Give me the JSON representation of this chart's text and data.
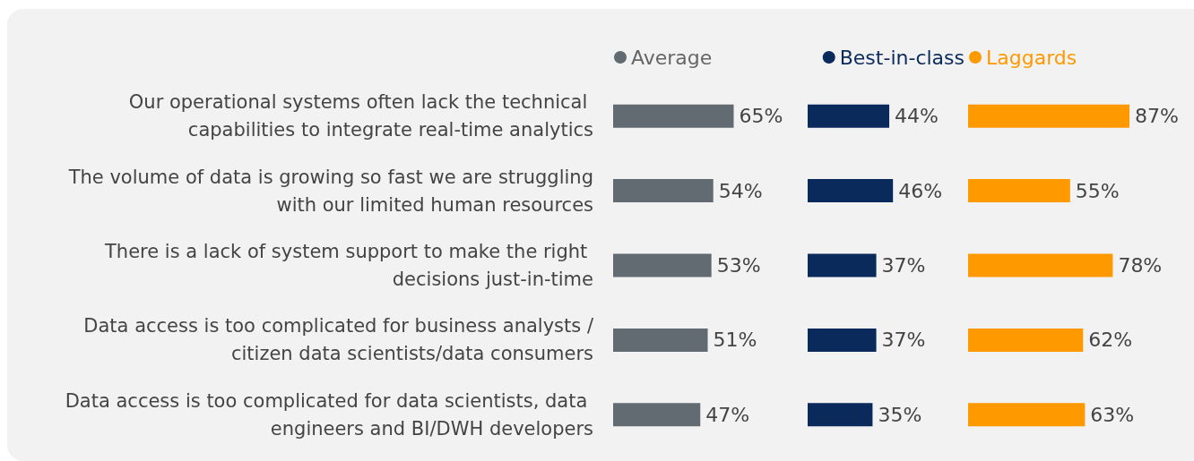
{
  "chart_data": [
    {
      "type": "bar",
      "orientation": "horizontal",
      "categories": [
        "Our operational systems often lack the technical capabilities to integrate real-time analytics",
        "The volume of data is growing so fast we are struggling with our limited human resources",
        "There is a lack of system support to make the right decisions just-in-time",
        "Data access is too complicated for business analysts /citizen data scientists/data consumers",
        "Data access is too complicated for data scientists, data engineers and BI/DWH developers"
      ],
      "tick_labels": "y",
      "legend": "top left",
      "grid": false,
      "series": [
        {
          "name": "Average",
          "color": "#636b72",
          "values": [
            65,
            54,
            53,
            51,
            47
          ],
          "value_labels": [
            "65%",
            "54%",
            "53%",
            "51%",
            "47%"
          ]
        }
      ]
    },
    {
      "type": "bar",
      "orientation": "horizontal",
      "categories": [
        null,
        null,
        null,
        null,
        null
      ],
      "tick_labels": false,
      "legend": "top right",
      "grid": false,
      "series": [
        {
          "name": "Best-in-class",
          "color": "#0a2a5c",
          "values": [
            44,
            46,
            37,
            37,
            35
          ],
          "value_labels": [
            "44%",
            "46%",
            "37%",
            "37%",
            "35%"
          ]
        }
      ]
    },
    {
      "type": "bar",
      "orientation": "horizontal",
      "categories": [
        null,
        null,
        null,
        null,
        null
      ],
      "tick_labels": false,
      "legend": "top left",
      "grid": false,
      "series": [
        {
          "name": "Laggards",
          "color": "#ff9900",
          "values": [
            87,
            55,
            78,
            62,
            63
          ],
          "value_labels": [
            "87%",
            "55%",
            "78%",
            "62%",
            "63%"
          ]
        }
      ]
    }
  ]
}
